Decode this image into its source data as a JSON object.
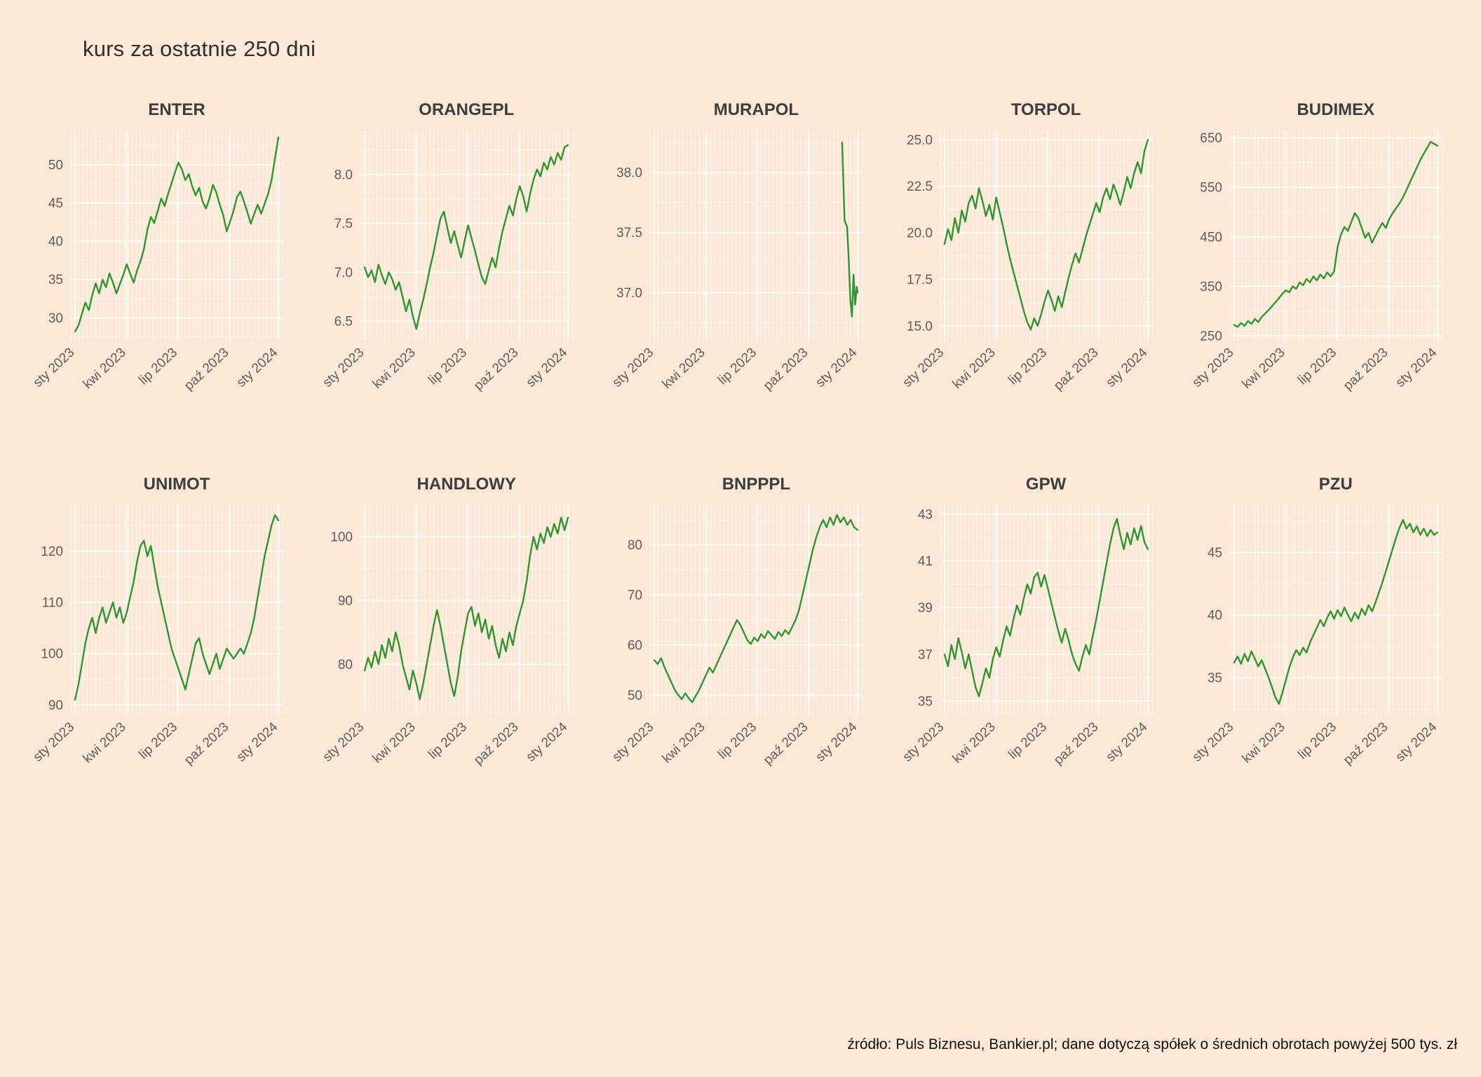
{
  "page": {
    "title": "kurs za ostatnie 250 dni",
    "source_note": "źródło: Puls Biznesu, Bankier.pl; dane dotyczą spółek o średnich obrotach powyżej 500 tys. zł"
  },
  "colors": {
    "background": "#fbe8d7",
    "line": "#2e9530",
    "grid": "#ffffff",
    "title_text": "#3d3d3d",
    "tick_text": "#5e5e5e"
  },
  "chart_data": {
    "type": "line",
    "layout": "small multiples, 2 rows x 5 columns",
    "title": "kurs za ostatnie 250 dni",
    "x_axis": {
      "tick_labels": [
        "sty 2023",
        "kwi 2023",
        "lip 2023",
        "paź 2023",
        "sty 2024"
      ],
      "tick_days": [
        0,
        63,
        126,
        189,
        249
      ],
      "domain_days": [
        -6,
        255
      ]
    },
    "charts": [
      {
        "name": "ENTER",
        "ylim": [
          27,
          54.5
        ],
        "yticks": [
          30,
          35,
          40,
          45,
          50
        ],
        "ytick_labels": [
          "30",
          "35",
          "40",
          "45",
          "50"
        ],
        "values": [
          28.2,
          29.0,
          30.5,
          32.0,
          31.0,
          33.0,
          34.5,
          33.2,
          35.0,
          34.0,
          35.8,
          34.6,
          33.2,
          34.4,
          35.6,
          37.0,
          35.8,
          34.6,
          36.2,
          37.4,
          39.0,
          41.5,
          43.2,
          42.4,
          44.0,
          45.6,
          44.6,
          46.2,
          47.6,
          49.0,
          50.3,
          49.4,
          48.0,
          48.8,
          47.2,
          46.0,
          47.0,
          45.2,
          44.3,
          45.6,
          47.4,
          46.4,
          44.8,
          43.4,
          41.3,
          42.6,
          44.0,
          45.8,
          46.5,
          45.2,
          43.8,
          42.3,
          43.6,
          44.8,
          43.6,
          44.9,
          46.2,
          48.0,
          50.8,
          53.6
        ]
      },
      {
        "name": "ORANGEPL",
        "ylim": [
          6.3,
          8.45
        ],
        "yticks": [
          6.5,
          7.0,
          7.5,
          8.0
        ],
        "ytick_labels": [
          "6.5",
          "7.0",
          "7.5",
          "8.0"
        ],
        "values": [
          7.05,
          6.95,
          7.02,
          6.9,
          7.08,
          6.97,
          6.88,
          7.0,
          6.93,
          6.82,
          6.9,
          6.75,
          6.6,
          6.72,
          6.55,
          6.42,
          6.58,
          6.72,
          6.88,
          7.05,
          7.2,
          7.38,
          7.55,
          7.62,
          7.45,
          7.3,
          7.42,
          7.28,
          7.15,
          7.32,
          7.48,
          7.35,
          7.22,
          7.08,
          6.95,
          6.88,
          7.02,
          7.15,
          7.05,
          7.25,
          7.42,
          7.55,
          7.68,
          7.58,
          7.75,
          7.88,
          7.78,
          7.62,
          7.8,
          7.95,
          8.05,
          7.98,
          8.12,
          8.05,
          8.18,
          8.1,
          8.22,
          8.15,
          8.28,
          8.3
        ]
      },
      {
        "name": "MURAPOL",
        "ylim": [
          36.6,
          38.35
        ],
        "yticks": [
          37.0,
          37.5,
          38.0
        ],
        "ytick_labels": [
          "37.0",
          "37.5",
          "38.0"
        ],
        "x_days": [
          230,
          233,
          236,
          238,
          240,
          242,
          244,
          246,
          248,
          249
        ],
        "values": [
          38.25,
          37.6,
          37.55,
          37.3,
          36.95,
          36.8,
          37.15,
          36.9,
          37.05,
          37.0
        ]
      },
      {
        "name": "TORPOL",
        "ylim": [
          14.2,
          25.5
        ],
        "yticks": [
          15.0,
          17.5,
          20.0,
          22.5,
          25.0
        ],
        "ytick_labels": [
          "15.0",
          "17.5",
          "20.0",
          "22.5",
          "25.0"
        ],
        "values": [
          19.4,
          20.2,
          19.6,
          20.8,
          20.0,
          21.2,
          20.6,
          21.6,
          22.0,
          21.3,
          22.4,
          21.7,
          20.9,
          21.5,
          20.7,
          21.9,
          21.1,
          20.3,
          19.4,
          18.6,
          17.9,
          17.2,
          16.5,
          15.8,
          15.2,
          14.8,
          15.4,
          15.0,
          15.6,
          16.3,
          16.9,
          16.4,
          15.8,
          16.6,
          16.0,
          16.8,
          17.6,
          18.3,
          18.9,
          18.4,
          19.1,
          19.8,
          20.4,
          21.0,
          21.6,
          21.1,
          21.9,
          22.4,
          21.8,
          22.6,
          22.1,
          21.5,
          22.2,
          23.0,
          22.4,
          23.2,
          23.8,
          23.2,
          24.4,
          25.0
        ]
      },
      {
        "name": "BUDIMEX",
        "ylim": [
          240,
          665
        ],
        "yticks": [
          250,
          350,
          450,
          550,
          650
        ],
        "ytick_labels": [
          "250",
          "350",
          "450",
          "550",
          "650"
        ],
        "values": [
          272,
          268,
          276,
          270,
          280,
          274,
          284,
          278,
          288,
          295,
          302,
          310,
          318,
          326,
          335,
          342,
          338,
          350,
          345,
          358,
          352,
          365,
          358,
          370,
          362,
          374,
          366,
          378,
          370,
          380,
          430,
          455,
          470,
          462,
          480,
          498,
          488,
          468,
          448,
          458,
          438,
          452,
          466,
          478,
          468,
          486,
          498,
          508,
          518,
          530,
          545,
          560,
          575,
          590,
          605,
          618,
          630,
          642,
          638,
          634
        ]
      },
      {
        "name": "UNIMOT",
        "ylim": [
          88,
          129
        ],
        "yticks": [
          90,
          100,
          110,
          120
        ],
        "ytick_labels": [
          "90",
          "100",
          "110",
          "120"
        ],
        "values": [
          91,
          94,
          98,
          102,
          105,
          107,
          104,
          107,
          109,
          106,
          108,
          110,
          107,
          109,
          106,
          108,
          111,
          114,
          118,
          121,
          122,
          119,
          121,
          117,
          113,
          110,
          107,
          104,
          101,
          99,
          97,
          95,
          93,
          96,
          99,
          102,
          103,
          100,
          98,
          96,
          98,
          100,
          97,
          99,
          101,
          100,
          99,
          100,
          101,
          100,
          102,
          104,
          107,
          111,
          115,
          119,
          122,
          125,
          127,
          126
        ]
      },
      {
        "name": "HANDLOWY",
        "ylim": [
          72,
          105
        ],
        "yticks": [
          80,
          90,
          100
        ],
        "ytick_labels": [
          "80",
          "90",
          "100"
        ],
        "values": [
          79,
          81,
          79.5,
          82,
          80,
          83,
          81,
          84,
          82,
          85,
          83,
          80,
          78,
          76,
          79,
          77,
          74.5,
          77,
          80,
          83,
          86,
          88.5,
          86,
          83,
          80,
          77,
          75,
          78,
          82,
          85,
          88,
          89,
          86,
          88,
          85,
          87,
          84,
          86,
          83,
          81,
          84,
          82,
          85,
          83,
          86,
          88,
          90,
          93,
          97,
          100,
          98,
          100.5,
          99,
          101.5,
          100,
          102,
          100.5,
          103,
          101,
          103
        ]
      },
      {
        "name": "BNPPPL",
        "ylim": [
          46,
          88
        ],
        "yticks": [
          50,
          60,
          70,
          80
        ],
        "ytick_labels": [
          "50",
          "60",
          "70",
          "80"
        ],
        "values": [
          57,
          56.2,
          57.4,
          55.5,
          54,
          52.5,
          51,
          50,
          49.2,
          50.4,
          49.4,
          48.6,
          49.8,
          51,
          52.5,
          54,
          55.5,
          54.5,
          56,
          57.5,
          59,
          60.5,
          62,
          63.5,
          65,
          64,
          62.5,
          61,
          60.2,
          61.5,
          60.8,
          62.2,
          61.4,
          62.8,
          62,
          61.2,
          62.6,
          61.8,
          63,
          62.2,
          63.6,
          65,
          67,
          70,
          73,
          76,
          79,
          81.5,
          83.5,
          85,
          83.5,
          85.5,
          84,
          86,
          84.5,
          85.5,
          84,
          85,
          83.5,
          83
        ]
      },
      {
        "name": "GPW",
        "ylim": [
          34.4,
          43.4
        ],
        "yticks": [
          35,
          37,
          39,
          41,
          43
        ],
        "ytick_labels": [
          "35",
          "37",
          "39",
          "41",
          "43"
        ],
        "values": [
          37.0,
          36.5,
          37.4,
          36.8,
          37.7,
          37.1,
          36.4,
          37.0,
          36.3,
          35.6,
          35.2,
          35.8,
          36.4,
          36.0,
          36.8,
          37.3,
          36.9,
          37.6,
          38.2,
          37.8,
          38.5,
          39.1,
          38.7,
          39.4,
          40.0,
          39.6,
          40.3,
          40.5,
          39.9,
          40.4,
          39.8,
          39.2,
          38.6,
          38.0,
          37.5,
          38.1,
          37.6,
          37.0,
          36.6,
          36.3,
          36.9,
          37.4,
          37.0,
          37.8,
          38.5,
          39.3,
          40.1,
          40.9,
          41.7,
          42.4,
          42.8,
          42.1,
          41.5,
          42.2,
          41.7,
          42.4,
          41.9,
          42.5,
          41.8,
          41.5
        ]
      },
      {
        "name": "PZU",
        "ylim": [
          32,
          48.8
        ],
        "yticks": [
          35,
          40,
          45
        ],
        "ytick_labels": [
          "35",
          "40",
          "45"
        ],
        "values": [
          36.2,
          36.7,
          36.1,
          36.9,
          36.3,
          37.1,
          36.5,
          35.9,
          36.4,
          35.7,
          35.0,
          34.2,
          33.4,
          32.9,
          33.8,
          34.8,
          35.8,
          36.6,
          37.2,
          36.8,
          37.4,
          37.0,
          37.8,
          38.4,
          39.0,
          39.6,
          39.1,
          39.8,
          40.3,
          39.7,
          40.4,
          39.9,
          40.6,
          40.0,
          39.5,
          40.2,
          39.7,
          40.5,
          40.0,
          40.8,
          40.3,
          41.0,
          41.8,
          42.6,
          43.5,
          44.4,
          45.3,
          46.2,
          47.0,
          47.6,
          46.9,
          47.3,
          46.6,
          47.1,
          46.4,
          46.9,
          46.3,
          46.8,
          46.4,
          46.6
        ]
      }
    ]
  }
}
